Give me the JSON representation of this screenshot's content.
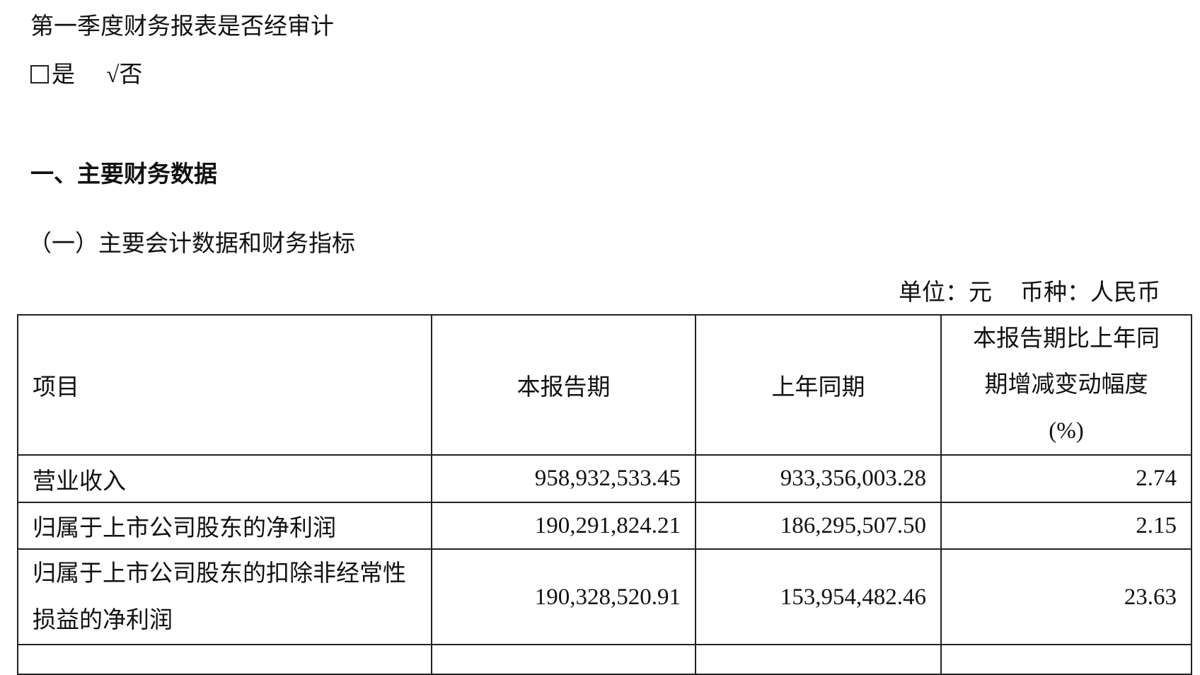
{
  "audit_question": "第一季度财务报表是否经审计",
  "audit_options": {
    "yes_label": "是",
    "yes_checked": false,
    "check_mark": "√",
    "no_label": "否",
    "no_checked": true
  },
  "section_title": "一、主要财务数据",
  "subsection_title": "（一）主要会计数据和财务指标",
  "unit": {
    "unit_label": "单位：元",
    "currency_label": "币种：人民币"
  },
  "table": {
    "headers": [
      "项目",
      "本报告期",
      "上年同期",
      "本报告期比上年同期增减变动幅度(%)"
    ],
    "header_pct_lines": [
      "本报告期比上年同",
      "期增减变动幅度",
      "(%)"
    ],
    "rows": [
      {
        "item": "营业收入",
        "current": "958,932,533.45",
        "prior": "933,356,003.28",
        "change": "2.74"
      },
      {
        "item": "归属于上市公司股东的净利润",
        "current": "190,291,824.21",
        "prior": "186,295,507.50",
        "change": "2.15"
      },
      {
        "item": "归属于上市公司股东的扣除非经常性损益的净利润",
        "current": "190,328,520.91",
        "prior": "153,954,482.46",
        "change": "23.63"
      }
    ]
  }
}
